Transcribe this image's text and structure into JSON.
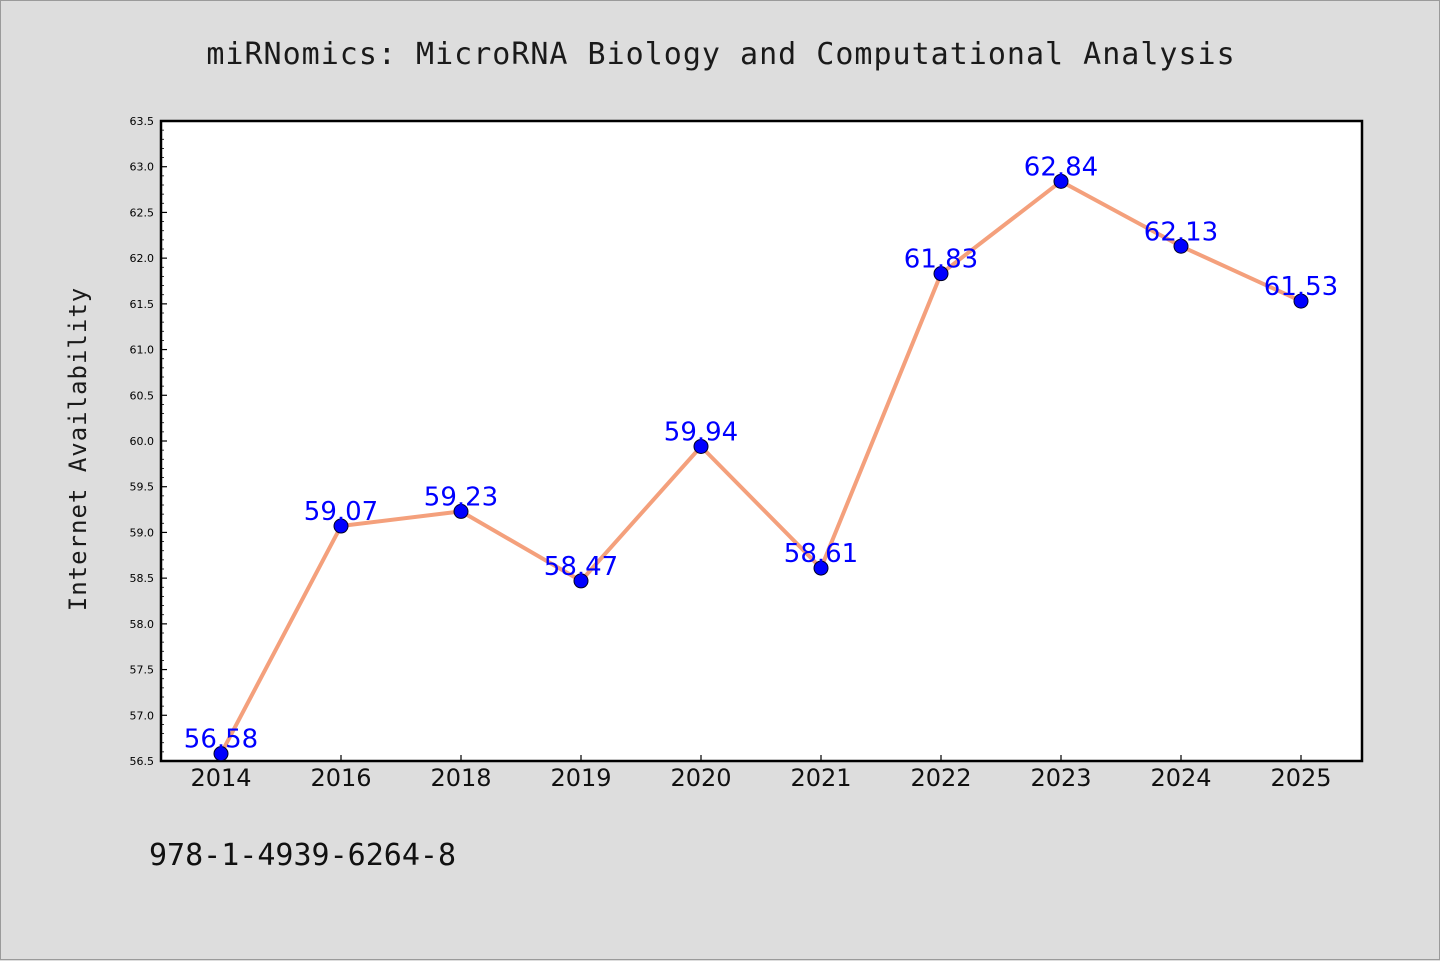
{
  "chart_data": {
    "type": "line",
    "title": "miRNomics: MicroRNA Biology and Computational Analysis",
    "xlabel": "",
    "ylabel": "Internet Availability",
    "categories": [
      "2014",
      "2016",
      "2018",
      "2019",
      "2020",
      "2021",
      "2022",
      "2023",
      "2024",
      "2025"
    ],
    "series": [
      {
        "values": [
          56.58,
          59.07,
          59.23,
          58.47,
          59.94,
          58.61,
          61.83,
          62.84,
          62.13,
          61.53
        ],
        "data_labels": [
          "56.58",
          "59.07",
          "59.23",
          "58.47",
          "59.94",
          "58.61",
          "61.83",
          "62.84",
          "62.13",
          "61.53"
        ],
        "line_color": "#f4a07c",
        "marker_color": "#0000ff"
      }
    ],
    "ylim": [
      56.5,
      63.5
    ],
    "yticks": [
      "56.5",
      "57.0",
      "57.5",
      "58.0",
      "58.5",
      "59.0",
      "59.5",
      "60.0",
      "60.5",
      "61.0",
      "61.5",
      "62.0",
      "62.5",
      "63.0",
      "63.5"
    ],
    "grid": false,
    "legend": "none"
  },
  "footer": {
    "isbn": "978-1-4939-6264-8"
  },
  "colors": {
    "background": "#dddddd",
    "plot_background": "#ffffff",
    "line": "#f4a07c",
    "marker": "#0000ff",
    "label": "#0000ff"
  }
}
